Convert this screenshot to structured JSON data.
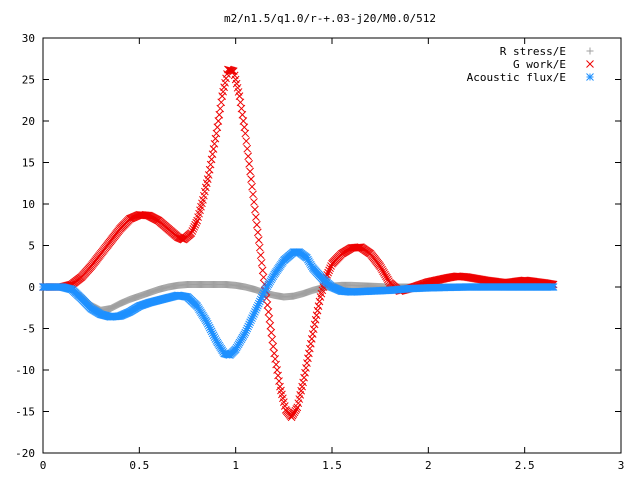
{
  "chart_data": {
    "type": "scatter",
    "title": "m2/n1.5/q1.0/r-+.03-j20/M0.0/512",
    "xlabel": "",
    "ylabel": "",
    "xlim": [
      0,
      3
    ],
    "ylim": [
      -20,
      30
    ],
    "xticks": [
      "0",
      "0.5",
      "1",
      "1.5",
      "2",
      "2.5",
      "3"
    ],
    "yticks": [
      "-20",
      "-15",
      "-10",
      "-5",
      "0",
      "5",
      "10",
      "15",
      "20",
      "25",
      "30"
    ],
    "legend_position": "top-right",
    "grid": false,
    "series": [
      {
        "name": "R stress/E",
        "marker": "plus",
        "color": "#a0a0a0",
        "points": [
          [
            0,
            0
          ],
          [
            0.1,
            0
          ],
          [
            0.15,
            -0.3
          ],
          [
            0.2,
            -1.2
          ],
          [
            0.25,
            -2.2
          ],
          [
            0.3,
            -2.8
          ],
          [
            0.35,
            -2.6
          ],
          [
            0.4,
            -2.0
          ],
          [
            0.45,
            -1.5
          ],
          [
            0.5,
            -1.1
          ],
          [
            0.55,
            -0.7
          ],
          [
            0.6,
            -0.3
          ],
          [
            0.65,
            0
          ],
          [
            0.7,
            0.2
          ],
          [
            0.75,
            0.3
          ],
          [
            0.8,
            0.3
          ],
          [
            0.85,
            0.3
          ],
          [
            0.9,
            0.3
          ],
          [
            0.95,
            0.3
          ],
          [
            1.0,
            0.2
          ],
          [
            1.05,
            0
          ],
          [
            1.1,
            -0.3
          ],
          [
            1.15,
            -0.7
          ],
          [
            1.2,
            -1.0
          ],
          [
            1.25,
            -1.2
          ],
          [
            1.3,
            -1.1
          ],
          [
            1.35,
            -0.8
          ],
          [
            1.4,
            -0.4
          ],
          [
            1.45,
            -0.1
          ],
          [
            1.5,
            0.1
          ],
          [
            1.55,
            0.2
          ],
          [
            1.6,
            0.2
          ],
          [
            1.7,
            0.1
          ],
          [
            1.8,
            0
          ],
          [
            1.9,
            0
          ],
          [
            2.0,
            0
          ],
          [
            2.2,
            0
          ],
          [
            2.4,
            0
          ],
          [
            2.65,
            0
          ]
        ]
      },
      {
        "name": "G work/E",
        "marker": "cross",
        "color": "#ee0000",
        "points": [
          [
            0,
            0
          ],
          [
            0.1,
            0
          ],
          [
            0.15,
            0.3
          ],
          [
            0.2,
            1.2
          ],
          [
            0.25,
            2.5
          ],
          [
            0.3,
            4.0
          ],
          [
            0.35,
            5.5
          ],
          [
            0.4,
            7.0
          ],
          [
            0.45,
            8.2
          ],
          [
            0.5,
            8.7
          ],
          [
            0.55,
            8.6
          ],
          [
            0.6,
            8.0
          ],
          [
            0.65,
            7.0
          ],
          [
            0.7,
            6.0
          ],
          [
            0.73,
            5.7
          ],
          [
            0.77,
            6.5
          ],
          [
            0.8,
            8.0
          ],
          [
            0.83,
            10.5
          ],
          [
            0.86,
            13.5
          ],
          [
            0.9,
            18.5
          ],
          [
            0.93,
            23.0
          ],
          [
            0.96,
            26.2
          ],
          [
            0.99,
            26.0
          ],
          [
            1.02,
            23.0
          ],
          [
            1.05,
            18.5
          ],
          [
            1.08,
            13.0
          ],
          [
            1.11,
            7.5
          ],
          [
            1.14,
            2.0
          ],
          [
            1.17,
            -3.0
          ],
          [
            1.2,
            -8.0
          ],
          [
            1.23,
            -12.0
          ],
          [
            1.26,
            -14.8
          ],
          [
            1.29,
            -15.7
          ],
          [
            1.32,
            -14.5
          ],
          [
            1.35,
            -11.5
          ],
          [
            1.38,
            -8.0
          ],
          [
            1.41,
            -4.5
          ],
          [
            1.44,
            -1.2
          ],
          [
            1.47,
            1.2
          ],
          [
            1.5,
            2.8
          ],
          [
            1.55,
            4.0
          ],
          [
            1.6,
            4.7
          ],
          [
            1.65,
            4.8
          ],
          [
            1.7,
            4.0
          ],
          [
            1.75,
            2.5
          ],
          [
            1.8,
            0.5
          ],
          [
            1.85,
            -0.5
          ],
          [
            1.9,
            -0.2
          ],
          [
            2.0,
            0.6
          ],
          [
            2.1,
            1.1
          ],
          [
            2.15,
            1.3
          ],
          [
            2.2,
            1.2
          ],
          [
            2.3,
            0.8
          ],
          [
            2.4,
            0.5
          ],
          [
            2.5,
            0.8
          ],
          [
            2.6,
            0.5
          ],
          [
            2.65,
            0.3
          ]
        ]
      },
      {
        "name": "Acoustic flux/E",
        "marker": "star",
        "color": "#1e90ff",
        "points": [
          [
            0,
            0
          ],
          [
            0.1,
            0
          ],
          [
            0.15,
            -0.3
          ],
          [
            0.2,
            -1.4
          ],
          [
            0.25,
            -2.6
          ],
          [
            0.3,
            -3.3
          ],
          [
            0.35,
            -3.6
          ],
          [
            0.4,
            -3.5
          ],
          [
            0.45,
            -3.0
          ],
          [
            0.5,
            -2.3
          ],
          [
            0.55,
            -1.9
          ],
          [
            0.6,
            -1.6
          ],
          [
            0.65,
            -1.3
          ],
          [
            0.7,
            -1.0
          ],
          [
            0.75,
            -1.2
          ],
          [
            0.8,
            -2.3
          ],
          [
            0.85,
            -4.2
          ],
          [
            0.9,
            -6.5
          ],
          [
            0.94,
            -8.0
          ],
          [
            0.97,
            -8.2
          ],
          [
            1.0,
            -7.5
          ],
          [
            1.05,
            -5.5
          ],
          [
            1.1,
            -3.0
          ],
          [
            1.15,
            -0.5
          ],
          [
            1.2,
            1.5
          ],
          [
            1.25,
            3.2
          ],
          [
            1.3,
            4.2
          ],
          [
            1.33,
            4.2
          ],
          [
            1.37,
            3.5
          ],
          [
            1.4,
            2.3
          ],
          [
            1.45,
            1.0
          ],
          [
            1.5,
            0
          ],
          [
            1.55,
            -0.5
          ],
          [
            1.6,
            -0.6
          ],
          [
            1.7,
            -0.5
          ],
          [
            1.8,
            -0.4
          ],
          [
            1.9,
            -0.2
          ],
          [
            2.0,
            -0.1
          ],
          [
            2.2,
            0
          ],
          [
            2.4,
            0
          ],
          [
            2.65,
            0
          ]
        ]
      }
    ]
  }
}
